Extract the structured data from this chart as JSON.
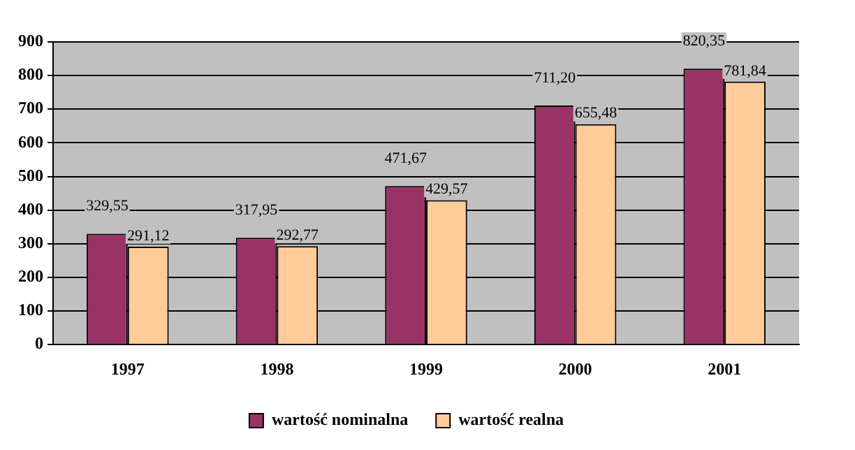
{
  "chart_data": {
    "type": "bar",
    "categories": [
      "1997",
      "1998",
      "1999",
      "2000",
      "2001"
    ],
    "series": [
      {
        "name": "wartość nominalna",
        "color": "#993366",
        "values": [
          329.55,
          317.95,
          471.67,
          711.2,
          820.35
        ],
        "value_labels": [
          "329,55",
          "317,95",
          "471,67",
          "711,20",
          "820,35"
        ]
      },
      {
        "name": "wartość realna",
        "color": "#ffcc99",
        "values": [
          291.12,
          292.77,
          429.57,
          655.48,
          781.84
        ],
        "value_labels": [
          "291,12",
          "292,77",
          "429,57",
          "655,48",
          "781,84"
        ]
      }
    ],
    "ylim": [
      0,
      900
    ],
    "yticks": [
      0,
      100,
      200,
      300,
      400,
      500,
      600,
      700,
      800,
      900
    ],
    "grid": "y",
    "legend": "bottom"
  }
}
